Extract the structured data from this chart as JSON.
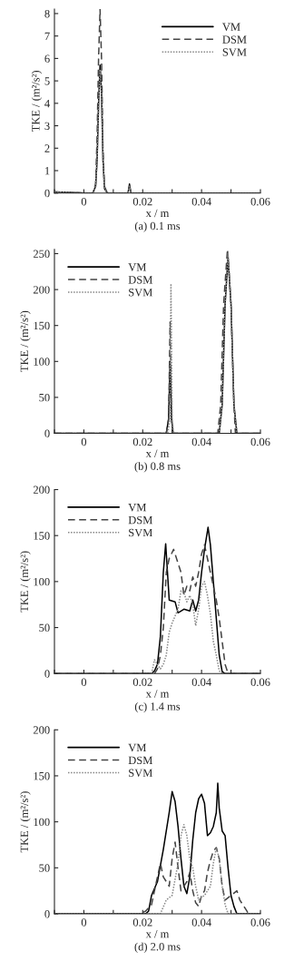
{
  "chart_data": [
    {
      "type": "line",
      "title": "(a) 0.1 ms",
      "xlabel": "x / m",
      "ylabel": "TKE / (m²/s²)",
      "xlim": [
        -0.01,
        0.06
      ],
      "xticks": [
        {
          "value": -0.01,
          "label": null
        },
        0,
        {
          "value": 0.01,
          "label": null
        },
        0.02,
        {
          "value": 0.03,
          "label": null
        },
        0.04,
        {
          "value": 0.05,
          "label": null
        },
        0.06
      ],
      "ylim": [
        0,
        8.2
      ],
      "yticks": [
        0,
        1,
        2,
        3,
        4,
        5,
        6,
        7,
        8
      ],
      "legend": "top right",
      "grid": false,
      "series": [
        {
          "name": "VM",
          "color": "#000000",
          "line_style": "solid",
          "x": [
            -0.01,
            -0.005,
            0,
            0.003,
            0.004,
            0.0045,
            0.005,
            0.0055,
            0.006,
            0.0065,
            0.007,
            0.008,
            0.015,
            0.0155,
            0.016,
            0.06
          ],
          "values": [
            0.05,
            0.03,
            0,
            0,
            0.3,
            1.5,
            4,
            5.7,
            4.5,
            1.5,
            0.2,
            0,
            0,
            0.4,
            0,
            0
          ]
        },
        {
          "name": "DSM",
          "color": "#444444",
          "line_style": "dashed",
          "x": [
            -0.01,
            -0.005,
            0,
            0.003,
            0.004,
            0.0045,
            0.005,
            0.0055,
            0.006,
            0.0065,
            0.007,
            0.008,
            0.015,
            0.0155,
            0.016,
            0.06
          ],
          "values": [
            0.05,
            0.03,
            0,
            0,
            0.4,
            2.5,
            6,
            8.2,
            6,
            2,
            0.3,
            0,
            0,
            0.3,
            0,
            0
          ]
        },
        {
          "name": "SVM",
          "color": "#888888",
          "line_style": "dotted",
          "x": [
            -0.01,
            -0.005,
            0,
            0.003,
            0.004,
            0.0045,
            0.005,
            0.0055,
            0.006,
            0.0065,
            0.007,
            0.008,
            0.015,
            0.0155,
            0.016,
            0.06
          ],
          "values": [
            0.05,
            0.03,
            0,
            0,
            0.3,
            1.4,
            3.8,
            5.5,
            4.3,
            1.4,
            0.2,
            0,
            0,
            0.3,
            0,
            0
          ]
        }
      ]
    },
    {
      "type": "line",
      "title": "(b) 0.8 ms",
      "xlabel": "x / m",
      "ylabel": "TKE / (m²/s²)",
      "xlim": [
        -0.01,
        0.06
      ],
      "xticks": [
        {
          "value": -0.01,
          "label": null
        },
        0,
        {
          "value": 0.01,
          "label": null
        },
        0.02,
        {
          "value": 0.03,
          "label": null
        },
        0.04,
        {
          "value": 0.05,
          "label": null
        },
        0.06
      ],
      "ylim": [
        0,
        256
      ],
      "yticks": [
        0,
        50,
        100,
        150,
        200,
        250
      ],
      "legend": "top left",
      "grid": false,
      "series": [
        {
          "name": "VM",
          "color": "#000000",
          "line_style": "solid",
          "x": [
            -0.01,
            0.028,
            0.0288,
            0.0293,
            0.0298,
            0.0303,
            0.031,
            0.046,
            0.047,
            0.048,
            0.049,
            0.05,
            0.051,
            0.052,
            0.06
          ],
          "values": [
            0,
            0,
            20,
            100,
            20,
            0,
            0,
            0,
            40,
            180,
            245,
            180,
            40,
            0,
            0
          ]
        },
        {
          "name": "DSM",
          "color": "#444444",
          "line_style": "dashed",
          "x": [
            -0.01,
            0.028,
            0.0288,
            0.0293,
            0.0298,
            0.0303,
            0.031,
            0.0455,
            0.0465,
            0.0475,
            0.0488,
            0.05,
            0.051,
            0.0515,
            0.06
          ],
          "values": [
            0,
            0,
            20,
            155,
            20,
            0,
            0,
            0,
            40,
            180,
            256,
            180,
            40,
            0,
            0
          ]
        },
        {
          "name": "SVM",
          "color": "#888888",
          "line_style": "dotted",
          "x": [
            -0.01,
            0.0285,
            0.0292,
            0.0296,
            0.03,
            0.0305,
            0.031,
            0.046,
            0.047,
            0.048,
            0.049,
            0.05,
            0.051,
            0.052,
            0.06
          ],
          "values": [
            0,
            0,
            20,
            208,
            20,
            0,
            0,
            0,
            40,
            180,
            250,
            180,
            40,
            0,
            0
          ]
        }
      ]
    },
    {
      "type": "line",
      "title": "(c) 1.4 ms",
      "xlabel": "x / m",
      "ylabel": "TKE / (m²/s²)",
      "xlim": [
        -0.01,
        0.06
      ],
      "xticks": [
        {
          "value": -0.01,
          "label": null
        },
        0,
        {
          "value": 0.01,
          "label": null
        },
        0.02,
        {
          "value": 0.03,
          "label": null
        },
        0.04,
        {
          "value": 0.05,
          "label": null
        },
        0.06
      ],
      "ylim": [
        0,
        200
      ],
      "yticks": [
        0,
        50,
        100,
        150,
        200
      ],
      "legend": "top left",
      "grid": false,
      "series": [
        {
          "name": "VM",
          "color": "#000000",
          "line_style": "solid",
          "x": [
            -0.01,
            0.023,
            0.024,
            0.025,
            0.026,
            0.027,
            0.0278,
            0.029,
            0.031,
            0.032,
            0.034,
            0.036,
            0.037,
            0.038,
            0.039,
            0.04,
            0.041,
            0.0422,
            0.043,
            0.044,
            0.045,
            0.046,
            0.047,
            0.048,
            0.06
          ],
          "values": [
            0,
            0,
            3,
            10,
            40,
            110,
            141,
            80,
            78,
            66,
            70,
            68,
            80,
            68,
            80,
            110,
            135,
            159,
            140,
            100,
            60,
            20,
            2,
            0,
            0
          ]
        },
        {
          "name": "DSM",
          "color": "#444444",
          "line_style": "dashed",
          "x": [
            -0.01,
            0.024,
            0.025,
            0.026,
            0.027,
            0.028,
            0.029,
            0.0305,
            0.032,
            0.033,
            0.034,
            0.035,
            0.036,
            0.037,
            0.038,
            0.039,
            0.04,
            0.041,
            0.042,
            0.043,
            0.045,
            0.046,
            0.047,
            0.048,
            0.049,
            0.06
          ],
          "values": [
            0,
            0,
            5,
            20,
            50,
            110,
            125,
            135,
            120,
            110,
            85,
            95,
            90,
            105,
            95,
            110,
            130,
            140,
            125,
            110,
            80,
            60,
            35,
            10,
            0,
            0
          ]
        },
        {
          "name": "SVM",
          "color": "#888888",
          "line_style": "dotted",
          "x": [
            -0.01,
            0.023,
            0.024,
            0.025,
            0.026,
            0.027,
            0.028,
            0.029,
            0.03,
            0.032,
            0.033,
            0.034,
            0.035,
            0.036,
            0.037,
            0.038,
            0.039,
            0.04,
            0.041,
            0.042,
            0.043,
            0.044,
            0.045,
            0.046,
            0.047,
            0.06
          ],
          "values": [
            0,
            0,
            15,
            10,
            5,
            10,
            20,
            45,
            55,
            70,
            90,
            88,
            78,
            85,
            75,
            52,
            70,
            95,
            100,
            85,
            65,
            35,
            20,
            3,
            0,
            0
          ]
        }
      ]
    },
    {
      "type": "line",
      "title": "(d) 2.0 ms",
      "xlabel": "x / m",
      "ylabel": "TKE / (m²/s²)",
      "xlim": [
        -0.01,
        0.06
      ],
      "xticks": [
        {
          "value": -0.01,
          "label": null
        },
        0,
        {
          "value": 0.01,
          "label": null
        },
        0.02,
        {
          "value": 0.03,
          "label": null
        },
        0.04,
        {
          "value": 0.05,
          "label": null
        },
        0.06
      ],
      "ylim": [
        0,
        200
      ],
      "yticks": [
        0,
        50,
        100,
        150,
        200
      ],
      "legend": "top left",
      "grid": false,
      "series": [
        {
          "name": "VM",
          "color": "#000000",
          "line_style": "solid",
          "x": [
            -0.01,
            0.021,
            0.022,
            0.023,
            0.025,
            0.027,
            0.029,
            0.03,
            0.031,
            0.032,
            0.033,
            0.034,
            0.035,
            0.036,
            0.037,
            0.038,
            0.039,
            0.04,
            0.041,
            0.042,
            0.043,
            0.044,
            0.045,
            0.0455,
            0.046,
            0.047,
            0.048,
            0.049,
            0.05,
            0.051,
            0.052,
            0.06
          ],
          "values": [
            0,
            0,
            3,
            20,
            35,
            70,
            110,
            133,
            122,
            95,
            60,
            30,
            22,
            40,
            80,
            110,
            125,
            130,
            120,
            85,
            88,
            95,
            110,
            142,
            115,
            90,
            85,
            50,
            20,
            8,
            0,
            0
          ]
        },
        {
          "name": "DSM",
          "color": "#444444",
          "line_style": "dashed",
          "x": [
            -0.01,
            0.019,
            0.021,
            0.023,
            0.025,
            0.026,
            0.027,
            0.028,
            0.029,
            0.03,
            0.031,
            0.032,
            0.033,
            0.035,
            0.036,
            0.037,
            0.038,
            0.039,
            0.04,
            0.041,
            0.042,
            0.043,
            0.044,
            0.045,
            0.046,
            0.047,
            0.048,
            0.05,
            0.052,
            0.053,
            0.055,
            0.056,
            0.06
          ],
          "values": [
            0,
            0,
            3,
            10,
            40,
            55,
            40,
            35,
            30,
            60,
            78,
            50,
            25,
            35,
            45,
            25,
            12,
            8,
            20,
            25,
            45,
            58,
            68,
            72,
            60,
            30,
            15,
            20,
            25,
            15,
            5,
            0,
            0
          ]
        },
        {
          "name": "SVM",
          "color": "#888888",
          "line_style": "dotted",
          "x": [
            -0.01,
            0.026,
            0.028,
            0.03,
            0.032,
            0.033,
            0.034,
            0.035,
            0.036,
            0.037,
            0.038,
            0.039,
            0.04,
            0.041,
            0.043,
            0.044,
            0.045,
            0.046,
            0.047,
            0.048,
            0.049,
            0.06
          ],
          "values": [
            0,
            0,
            15,
            20,
            55,
            85,
            97,
            85,
            60,
            50,
            30,
            15,
            18,
            20,
            30,
            55,
            72,
            60,
            30,
            10,
            0,
            0
          ]
        }
      ]
    }
  ]
}
